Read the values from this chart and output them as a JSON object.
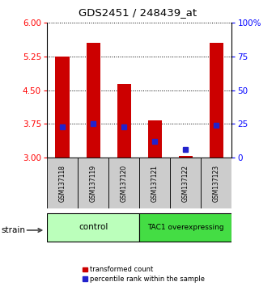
{
  "title": "GDS2451 / 248439_at",
  "samples": [
    "GSM137118",
    "GSM137119",
    "GSM137120",
    "GSM137121",
    "GSM137122",
    "GSM137123"
  ],
  "red_values": [
    5.25,
    5.55,
    4.63,
    3.82,
    3.03,
    5.55
  ],
  "blue_values": [
    3.68,
    3.75,
    3.68,
    3.35,
    3.18,
    3.72
  ],
  "ylim": [
    3.0,
    6.0
  ],
  "yticks_left": [
    3.0,
    3.75,
    4.5,
    5.25,
    6.0
  ],
  "yticks_right": [
    0,
    25,
    50,
    75,
    100
  ],
  "bar_color": "#cc0000",
  "blue_color": "#2222cc",
  "label_red": "transformed count",
  "label_blue": "percentile rank within the sample",
  "ctrl_color": "#bbffbb",
  "tac1_color": "#44dd44",
  "sample_box_color": "#cccccc"
}
